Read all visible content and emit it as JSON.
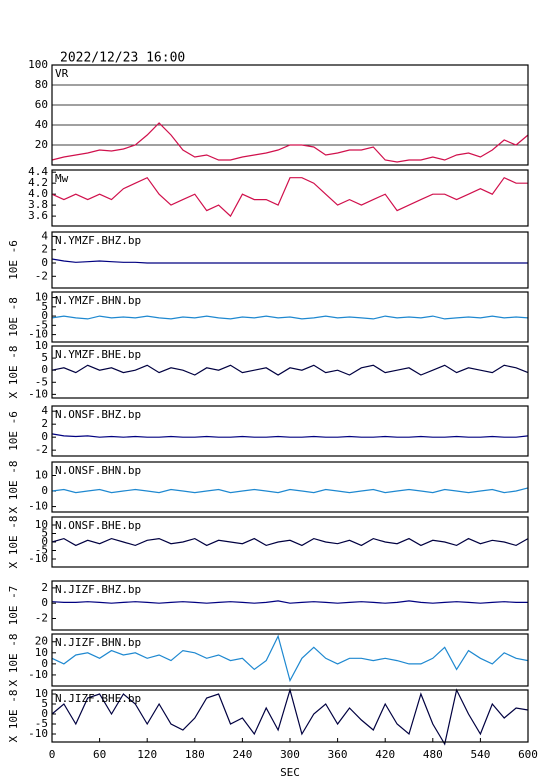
{
  "chart_data": [
    {
      "type": "line",
      "title": "2022/12/23 16:00",
      "label": "VR",
      "color": "#d0104c",
      "grid": true,
      "xlim": [
        0,
        600
      ],
      "ylim": [
        0,
        100
      ],
      "yticks": [
        20,
        40,
        60,
        80,
        100
      ],
      "x": [
        0,
        15,
        30,
        45,
        60,
        75,
        90,
        105,
        120,
        135,
        150,
        165,
        180,
        195,
        210,
        225,
        240,
        255,
        270,
        285,
        300,
        315,
        330,
        345,
        360,
        375,
        390,
        405,
        420,
        435,
        450,
        465,
        480,
        495,
        510,
        525,
        540,
        555,
        570,
        585,
        600
      ],
      "values": [
        5,
        8,
        10,
        12,
        15,
        14,
        16,
        20,
        30,
        42,
        30,
        15,
        8,
        10,
        5,
        5,
        8,
        10,
        12,
        15,
        20,
        20,
        18,
        10,
        12,
        15,
        15,
        18,
        5,
        3,
        5,
        5,
        8,
        5,
        10,
        12,
        8,
        15,
        25,
        20,
        30
      ]
    },
    {
      "type": "line",
      "label": "Mw",
      "color": "#d0104c",
      "grid": false,
      "xlim": [
        0,
        600
      ],
      "ylim": [
        3.42,
        4.44
      ],
      "yticks": [
        4.4,
        4.2,
        {
          "value": 4,
          "label": "4.0"
        },
        3.8,
        3.6
      ],
      "x": [
        0,
        15,
        30,
        45,
        60,
        75,
        90,
        105,
        120,
        135,
        150,
        165,
        180,
        195,
        210,
        225,
        240,
        255,
        270,
        285,
        300,
        315,
        330,
        345,
        360,
        375,
        390,
        405,
        420,
        435,
        450,
        465,
        480,
        495,
        510,
        525,
        540,
        555,
        570,
        585,
        600
      ],
      "values": [
        4.0,
        3.9,
        4.0,
        3.9,
        4.0,
        3.9,
        4.1,
        4.2,
        4.3,
        4.0,
        3.8,
        3.9,
        4.0,
        3.7,
        3.8,
        3.6,
        4.0,
        3.9,
        3.9,
        3.8,
        4.3,
        4.3,
        4.2,
        4.0,
        3.8,
        3.9,
        3.8,
        3.9,
        4.0,
        3.7,
        3.8,
        3.9,
        4.0,
        4.0,
        3.9,
        4.0,
        4.1,
        4.0,
        4.3,
        4.2,
        4.2
      ]
    },
    {
      "type": "line",
      "label": "N.YMZF.BHZ.bp",
      "ylabel": "10E -6",
      "color": "#000080",
      "grid": false,
      "xlim": [
        0,
        600
      ],
      "ylim": [
        -3.76,
        4.66
      ],
      "yticks": [
        4,
        2,
        0,
        -2
      ],
      "x": [
        0,
        15,
        30,
        45,
        60,
        75,
        90,
        105,
        120,
        135,
        150,
        165,
        180,
        195,
        210,
        225,
        240,
        255,
        270,
        285,
        300,
        315,
        330,
        345,
        360,
        375,
        390,
        405,
        420,
        435,
        450,
        465,
        480,
        495,
        510,
        525,
        540,
        555,
        570,
        585,
        600
      ],
      "values": [
        0.6,
        0.3,
        0.1,
        0.2,
        0.3,
        0.2,
        0.1,
        0.1,
        0,
        0,
        0,
        0,
        0,
        0,
        0,
        0,
        0,
        0,
        0,
        0,
        0,
        0,
        0,
        0,
        0,
        0,
        0,
        0,
        0,
        0,
        0,
        0,
        0,
        0,
        0,
        0,
        0,
        0,
        0,
        0,
        0
      ]
    },
    {
      "type": "line",
      "label": "N.YMZF.BHN.bp",
      "ylabel": "10E -8",
      "color": "#1e88d0",
      "grid": false,
      "xlim": [
        0,
        600
      ],
      "ylim": [
        -14,
        13
      ],
      "yticks": [
        10,
        5,
        0,
        -5,
        -10
      ],
      "x": [
        0,
        15,
        30,
        45,
        60,
        75,
        90,
        105,
        120,
        135,
        150,
        165,
        180,
        195,
        210,
        225,
        240,
        255,
        270,
        285,
        300,
        315,
        330,
        345,
        360,
        375,
        390,
        405,
        420,
        435,
        450,
        465,
        480,
        495,
        510,
        525,
        540,
        555,
        570,
        585,
        600
      ],
      "values": [
        -1,
        0,
        -1,
        -1.5,
        0,
        -1,
        -0.5,
        -1,
        0,
        -1,
        -1.5,
        -0.5,
        -1,
        0,
        -1,
        -1.5,
        -0.5,
        -1,
        0,
        -1,
        -0.5,
        -1.5,
        -1,
        0,
        -1,
        -0.5,
        -1,
        -1.5,
        0,
        -1,
        -0.5,
        -1,
        0,
        -1.5,
        -1,
        -0.5,
        -1,
        0,
        -1,
        -0.5,
        -1
      ]
    },
    {
      "type": "line",
      "label": "N.YMZF.BHE.bp",
      "ylabel": "X 10E -8",
      "color": "#000040",
      "grid": false,
      "xlim": [
        0,
        600
      ],
      "ylim": [
        -11.5,
        10
      ],
      "yticks": [
        10,
        5,
        0,
        -5,
        -10
      ],
      "x": [
        0,
        15,
        30,
        45,
        60,
        75,
        90,
        105,
        120,
        135,
        150,
        165,
        180,
        195,
        210,
        225,
        240,
        255,
        270,
        285,
        300,
        315,
        330,
        345,
        360,
        375,
        390,
        405,
        420,
        435,
        450,
        465,
        480,
        495,
        510,
        525,
        540,
        555,
        570,
        585,
        600
      ],
      "values": [
        0,
        1,
        -1,
        2,
        0,
        1,
        -1,
        0,
        2,
        -1,
        1,
        0,
        -2,
        1,
        0,
        2,
        -1,
        0,
        1,
        -2,
        1,
        0,
        2,
        -1,
        0,
        -2,
        1,
        2,
        -1,
        0,
        1,
        -2,
        0,
        2,
        -1,
        1,
        0,
        -1,
        2,
        1,
        -1
      ]
    },
    {
      "type": "line",
      "label": "N.ONSF.BHZ.bp",
      "ylabel": "10E -6",
      "color": "#000080",
      "grid": false,
      "xlim": [
        0,
        600
      ],
      "ylim": [
        -2.9,
        4.8
      ],
      "yticks": [
        4,
        2,
        0,
        -2
      ],
      "x": [
        0,
        15,
        30,
        45,
        60,
        75,
        90,
        105,
        120,
        135,
        150,
        165,
        180,
        195,
        210,
        225,
        240,
        255,
        270,
        285,
        300,
        315,
        330,
        345,
        360,
        375,
        390,
        405,
        420,
        435,
        450,
        465,
        480,
        495,
        510,
        525,
        540,
        555,
        570,
        585,
        600
      ],
      "values": [
        0.5,
        0.2,
        0.1,
        0.2,
        0,
        0.1,
        0,
        0.1,
        0,
        0,
        0.1,
        0,
        0,
        0.1,
        0,
        0,
        0.1,
        0,
        0,
        0.1,
        0,
        0,
        0.1,
        0,
        0,
        0.1,
        0,
        0,
        0.1,
        0,
        0,
        0.1,
        0,
        0,
        0.1,
        0,
        0,
        0.1,
        0,
        0,
        0.2
      ]
    },
    {
      "type": "line",
      "label": "N.ONSF.BHN.bp",
      "ylabel": "X 10E -8",
      "color": "#1e88d0",
      "grid": false,
      "xlim": [
        0,
        600
      ],
      "ylim": [
        -13.5,
        18.7
      ],
      "yticks": [
        10,
        0,
        -10
      ],
      "x": [
        0,
        15,
        30,
        45,
        60,
        75,
        90,
        105,
        120,
        135,
        150,
        165,
        180,
        195,
        210,
        225,
        240,
        255,
        270,
        285,
        300,
        315,
        330,
        345,
        360,
        375,
        390,
        405,
        420,
        435,
        450,
        465,
        480,
        495,
        510,
        525,
        540,
        555,
        570,
        585,
        600
      ],
      "values": [
        0,
        1,
        -1,
        0,
        1,
        -1,
        0,
        1,
        0,
        -1,
        1,
        0,
        -1,
        0,
        1,
        -1,
        0,
        1,
        0,
        -1,
        1,
        0,
        -1,
        1,
        0,
        -1,
        0,
        1,
        -1,
        0,
        1,
        0,
        -1,
        1,
        0,
        -1,
        0,
        1,
        -1,
        0,
        2
      ]
    },
    {
      "type": "line",
      "label": "N.ONSF.BHE.bp",
      "ylabel": "X 10E -8",
      "color": "#000040",
      "grid": false,
      "xlim": [
        0,
        600
      ],
      "ylim": [
        -14.7,
        14.7
      ],
      "yticks": [
        10,
        5,
        0,
        -5,
        -10
      ],
      "x": [
        0,
        15,
        30,
        45,
        60,
        75,
        90,
        105,
        120,
        135,
        150,
        165,
        180,
        195,
        210,
        225,
        240,
        255,
        270,
        285,
        300,
        315,
        330,
        345,
        360,
        375,
        390,
        405,
        420,
        435,
        450,
        465,
        480,
        495,
        510,
        525,
        540,
        555,
        570,
        585,
        600
      ],
      "values": [
        0,
        2,
        -2,
        1,
        -1,
        2,
        0,
        -2,
        1,
        2,
        -1,
        0,
        2,
        -2,
        1,
        0,
        -1,
        2,
        -2,
        0,
        1,
        -2,
        2,
        0,
        -1,
        1,
        -2,
        2,
        0,
        -1,
        2,
        -2,
        1,
        0,
        -2,
        2,
        -1,
        1,
        0,
        -2,
        2
      ]
    },
    {
      "type": "line",
      "label": "N.JIZF.BHZ.bp",
      "ylabel": "10E -7",
      "color": "#000080",
      "grid": false,
      "xlim": [
        0,
        600
      ],
      "ylim": [
        -3.5,
        2.9
      ],
      "yticks": [
        2,
        0,
        -2
      ],
      "x": [
        0,
        15,
        30,
        45,
        60,
        75,
        90,
        105,
        120,
        135,
        150,
        165,
        180,
        195,
        210,
        225,
        240,
        255,
        270,
        285,
        300,
        315,
        330,
        345,
        360,
        375,
        390,
        405,
        420,
        435,
        450,
        465,
        480,
        495,
        510,
        525,
        540,
        555,
        570,
        585,
        600
      ],
      "values": [
        0.2,
        0.1,
        0.1,
        0.2,
        0.1,
        0,
        0.1,
        0.2,
        0.1,
        0,
        0.1,
        0.2,
        0.1,
        0,
        0.1,
        0.2,
        0.1,
        0,
        0.1,
        0.3,
        0,
        0.1,
        0.2,
        0.1,
        0,
        0.1,
        0.2,
        0.1,
        0,
        0.1,
        0.3,
        0.1,
        0,
        0.1,
        0.2,
        0.1,
        0,
        0.1,
        0.2,
        0.1,
        0.1
      ]
    },
    {
      "type": "line",
      "label": "N.JIZF.BHN.bp",
      "ylabel": "X 10E -8",
      "color": "#1e88d0",
      "grid": false,
      "xlim": [
        0,
        600
      ],
      "ylim": [
        -20,
        27
      ],
      "yticks": [
        20,
        10,
        0,
        -10
      ],
      "x": [
        0,
        15,
        30,
        45,
        60,
        75,
        90,
        105,
        120,
        135,
        150,
        165,
        180,
        195,
        210,
        225,
        240,
        255,
        270,
        285,
        300,
        315,
        330,
        345,
        360,
        375,
        390,
        405,
        420,
        435,
        450,
        465,
        480,
        495,
        510,
        525,
        540,
        555,
        570,
        585,
        600
      ],
      "values": [
        5,
        0,
        8,
        10,
        5,
        12,
        8,
        10,
        5,
        8,
        3,
        12,
        10,
        5,
        8,
        3,
        5,
        -5,
        3,
        25,
        -15,
        5,
        15,
        5,
        0,
        5,
        5,
        3,
        5,
        3,
        0,
        0,
        5,
        15,
        -5,
        12,
        5,
        0,
        10,
        5,
        3
      ]
    },
    {
      "type": "line",
      "label": "N.JIZF.BHE.bp",
      "ylabel": "X 10E -8",
      "color": "#000040",
      "grid": false,
      "xlim": [
        0,
        600
      ],
      "ylim": [
        -14,
        12
      ],
      "yticks": [
        10,
        5,
        0,
        -5,
        -10
      ],
      "x": [
        0,
        15,
        30,
        45,
        60,
        75,
        90,
        105,
        120,
        135,
        150,
        165,
        180,
        195,
        210,
        225,
        240,
        255,
        270,
        285,
        300,
        315,
        330,
        345,
        360,
        375,
        390,
        405,
        420,
        435,
        450,
        465,
        480,
        495,
        510,
        525,
        540,
        555,
        570,
        585,
        600
      ],
      "values": [
        0,
        5,
        -5,
        8,
        10,
        0,
        10,
        5,
        -5,
        5,
        -5,
        -8,
        -2,
        8,
        10,
        -5,
        -2,
        -10,
        3,
        -8,
        12,
        -10,
        0,
        5,
        -5,
        3,
        -3,
        -8,
        5,
        -5,
        -10,
        10,
        -5,
        -15,
        12,
        0,
        -10,
        5,
        -2,
        3,
        2
      ],
      "xticks": [
        0,
        60,
        120,
        180,
        240,
        300,
        360,
        420,
        480,
        540,
        600
      ],
      "x_label": "SEC"
    }
  ]
}
